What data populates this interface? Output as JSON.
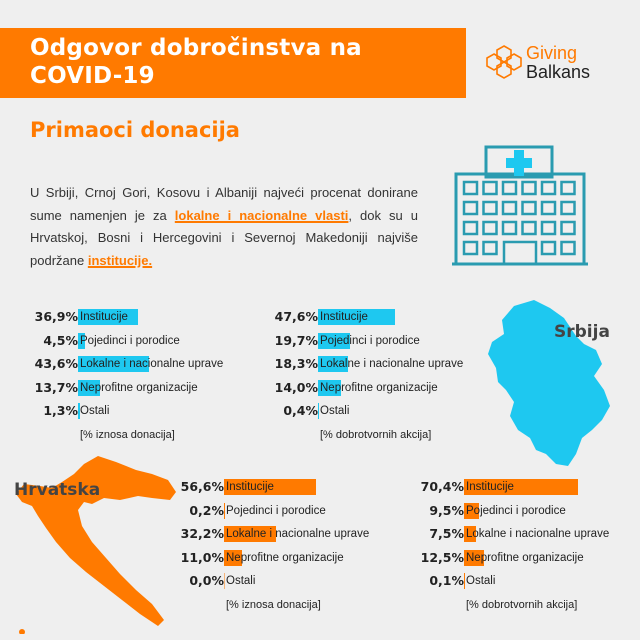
{
  "header": {
    "title_line1": "Odgovor dobročinstva na",
    "title_line2": "COVID-19"
  },
  "logo": {
    "line1": "Giving",
    "line2": "Balkans"
  },
  "subtitle": "Primaoci donacija",
  "intro": {
    "part1": "U Srbiji, Crnoj Gori, Kosovu i Albaniji najveći procenat donirane sume namenjen je za ",
    "highlight1": "lokalne i nacionalne vlasti",
    "part2": ", dok su u Hrvatskoj, Bosni i Hercegovini i Severnoj Makedoniji najviše podržane ",
    "highlight2": "institucije."
  },
  "colors": {
    "orange": "#ff7a00",
    "cyan": "#1ec8f0",
    "background": "#efefef"
  },
  "icons": {
    "hospital": "hospital-icon",
    "logo": "hexagon-flower-logo"
  },
  "countries": {
    "serbia": "Srbija",
    "croatia": "Hrvatska"
  },
  "chart_data": [
    {
      "type": "bar",
      "orientation": "horizontal",
      "country": "Srbija",
      "color": "#1ec8f0",
      "categories": [
        "Institucije",
        "Pojedinci i porodice",
        "Lokalne i nacionalne uprave",
        "Neprofitne organizacije",
        "Ostali"
      ],
      "values": [
        36.9,
        4.5,
        43.6,
        13.7,
        1.3
      ],
      "labels": [
        "36,9%",
        "4,5%",
        "43,6%",
        "13,7%",
        "1,3%"
      ],
      "note": "[% iznosa donacija]"
    },
    {
      "type": "bar",
      "orientation": "horizontal",
      "country": "Srbija",
      "color": "#1ec8f0",
      "categories": [
        "Institucije",
        "Pojedinci i porodice",
        "Lokalne i nacionalne uprave",
        "Neprofitne organizacije",
        "Ostali"
      ],
      "values": [
        47.6,
        19.7,
        18.3,
        14.0,
        0.4
      ],
      "labels": [
        "47,6%",
        "19,7%",
        "18,3%",
        "14,0%",
        "0,4%"
      ],
      "note": "[% dobrotvornih akcija]"
    },
    {
      "type": "bar",
      "orientation": "horizontal",
      "country": "Hrvatska",
      "color": "#ff7a00",
      "categories": [
        "Institucije",
        "Pojedinci i porodice",
        "Lokalne i nacionalne uprave",
        "Neprofitne organizacije",
        "Ostali"
      ],
      "values": [
        56.6,
        0.2,
        32.2,
        11.0,
        0.0
      ],
      "labels": [
        "56,6%",
        "0,2%",
        "32,2%",
        "11,0%",
        "0,0%"
      ],
      "note": "[% iznosa donacija]"
    },
    {
      "type": "bar",
      "orientation": "horizontal",
      "country": "Hrvatska",
      "color": "#ff7a00",
      "categories": [
        "Institucije",
        "Pojedinci i porodice",
        "Lokalne i nacionalne uprave",
        "Neprofitne organizacije",
        "Ostali"
      ],
      "values": [
        70.4,
        9.5,
        7.5,
        12.5,
        0.1
      ],
      "labels": [
        "70,4%",
        "9,5%",
        "7,5%",
        "12,5%",
        "0,1%"
      ],
      "note": "[% dobrotvornih akcija]"
    }
  ]
}
